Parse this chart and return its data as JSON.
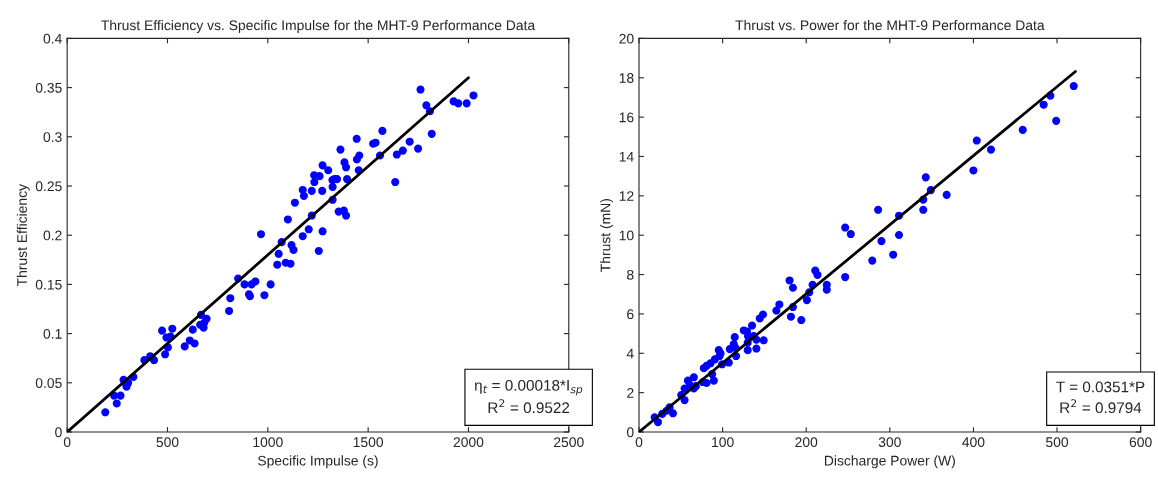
{
  "chart_data": [
    {
      "type": "scatter",
      "title": "Thrust Efficiency vs. Specific Impulse for the MHT-9 Performance Data",
      "xlabel": "Specific Impulse (s)",
      "ylabel": "Thrust Efficiency",
      "xlim": [
        0,
        2500
      ],
      "ylim": [
        0,
        0.4
      ],
      "xticks": [
        0,
        500,
        1000,
        1500,
        2000,
        2500
      ],
      "yticks": [
        0,
        0.05,
        0.1,
        0.15,
        0.2,
        0.25,
        0.3,
        0.35,
        0.4
      ],
      "grid": false,
      "legend": false,
      "annotations": [
        "η$_{t}$ = 0.00018*I$_{sp}$",
        "R$^{2}$ = 0.9522"
      ],
      "series": [
        {
          "color": "#0000ff",
          "marker": "circle",
          "x": [
            190,
            234,
            266,
            247,
            281,
            293,
            304,
            296,
            330,
            385,
            414,
            433,
            473,
            524,
            495,
            515,
            502,
            488,
            586,
            611,
            635,
            626,
            667,
            663,
            680,
            695,
            683,
            807,
            813,
            852,
            884,
            906,
            911,
            919,
            938,
            966,
            983,
            1014,
            1047,
            1054,
            1100,
            1069,
            1089,
            1113,
            1118,
            1128,
            1135,
            1174,
            1174,
            1180,
            1204,
            1219,
            1219,
            1231,
            1232,
            1254,
            1258,
            1273,
            1271,
            1273,
            1301,
            1322,
            1332,
            1345,
            1323,
            1323,
            1353,
            1379,
            1390,
            1362,
            1382,
            1390,
            1395,
            1443,
            1444,
            1456,
            1453,
            1525,
            1537,
            1559,
            1571,
            1635,
            1643,
            1673,
            1707,
            1749,
            1761,
            1790,
            1808,
            1817,
            1926,
            1949,
            1991,
            2025
          ],
          "values": [
            0.02,
            0.037,
            0.037,
            0.029,
            0.053,
            0.049,
            0.05,
            0.046,
            0.056,
            0.073,
            0.077,
            0.073,
            0.103,
            0.105,
            0.096,
            0.097,
            0.086,
            0.079,
            0.087,
            0.093,
            0.09,
            0.104,
            0.119,
            0.109,
            0.106,
            0.115,
            0.111,
            0.123,
            0.136,
            0.156,
            0.15,
            0.14,
            0.138,
            0.15,
            0.153,
            0.201,
            0.139,
            0.15,
            0.17,
            0.181,
            0.216,
            0.193,
            0.172,
            0.171,
            0.19,
            0.185,
            0.233,
            0.199,
            0.246,
            0.24,
            0.206,
            0.22,
            0.245,
            0.261,
            0.254,
            0.184,
            0.26,
            0.271,
            0.245,
            0.204,
            0.266,
            0.256,
            0.257,
            0.257,
            0.249,
            0.236,
            0.224,
            0.225,
            0.22,
            0.287,
            0.274,
            0.269,
            0.257,
            0.298,
            0.277,
            0.281,
            0.266,
            0.293,
            0.294,
            0.281,
            0.306,
            0.254,
            0.282,
            0.286,
            0.295,
            0.288,
            0.348,
            0.332,
            0.326,
            0.303,
            0.336,
            0.334,
            0.334,
            0.342
          ]
        },
        {
          "type": "line",
          "color": "#000000",
          "marker": "none",
          "line_style": "solid",
          "x": [
            0,
            2000
          ],
          "values": [
            0,
            0.36
          ]
        }
      ]
    },
    {
      "type": "scatter",
      "title": "Thrust vs. Power for the MHT-9 Performance Data",
      "xlabel": "Discharge Power (W)",
      "ylabel": "Thrust (mN)",
      "xlim": [
        0,
        600
      ],
      "ylim": [
        0,
        20
      ],
      "xticks": [
        0,
        100,
        200,
        300,
        400,
        500,
        600
      ],
      "yticks": [
        0,
        2,
        4,
        6,
        8,
        10,
        12,
        14,
        16,
        18,
        20
      ],
      "grid": false,
      "legend": false,
      "annotations": [
        "T = 0.0351*P",
        "R$^{2}$ = 0.9794"
      ],
      "series": [
        {
          "color": "#0000ff",
          "marker": "circle",
          "x": [
            18.7,
            22.7,
            27.8,
            33.0,
            36.6,
            40.6,
            50.5,
            54.5,
            54.5,
            58.5,
            60.8,
            65.6,
            65.6,
            68.0,
            76.4,
            77.5,
            80.8,
            80.8,
            85.5,
            87.4,
            89.5,
            90.7,
            95.4,
            97.5,
            99.4,
            96.3,
            107.4,
            108.6,
            113.3,
            114.5,
            115.4,
            116.1,
            125.3,
            129.2,
            130.0,
            130.0,
            130.4,
            135.2,
            137.2,
            140.4,
            140.4,
            144.4,
            148.3,
            149.1,
            164.3,
            167.9,
            180.1,
            184.1,
            181.7,
            184.1,
            194.1,
            200.8,
            203.6,
            207.6,
            210.8,
            213.5,
            224.6,
            224.6,
            246.6,
            246.6,
            253.3,
            279,
            286,
            290,
            304,
            311,
            311,
            340,
            340,
            343,
            349,
            368,
            400,
            404,
            421,
            459,
            484,
            492,
            499,
            520
          ],
          "values": [
            0.75,
            0.5,
            0.92,
            1.08,
            1.25,
            0.95,
            1.88,
            2.21,
            1.62,
            2.61,
            2.38,
            2.78,
            2.21,
            2.33,
            2.54,
            3.24,
            3.36,
            2.49,
            3.49,
            2.94,
            2.61,
            3.69,
            4.16,
            3.99,
            3.44,
            3.86,
            3.53,
            4.21,
            4.46,
            4.82,
            4.27,
            3.86,
            5.16,
            5.11,
            4.16,
            4.54,
            4.87,
            5.41,
            4.87,
            4.24,
            4.69,
            5.77,
            5.97,
            4.66,
            6.17,
            6.48,
            7.7,
            7.33,
            5.86,
            6.35,
            5.69,
            6.7,
            7.1,
            7.48,
            8.2,
            7.98,
            7.48,
            7.23,
            10.39,
            7.87,
            10.06,
            8.71,
            11.29,
            9.7,
            9.01,
            10.99,
            10.01,
            11.29,
            11.81,
            12.94,
            12.29,
            12.05,
            13.29,
            14.81,
            14.35,
            15.35,
            16.63,
            17.09,
            15.81,
            17.58
          ]
        },
        {
          "type": "line",
          "color": "#000000",
          "marker": "none",
          "line_style": "solid",
          "x": [
            0,
            522
          ],
          "values": [
            0,
            18.32
          ]
        }
      ]
    }
  ]
}
